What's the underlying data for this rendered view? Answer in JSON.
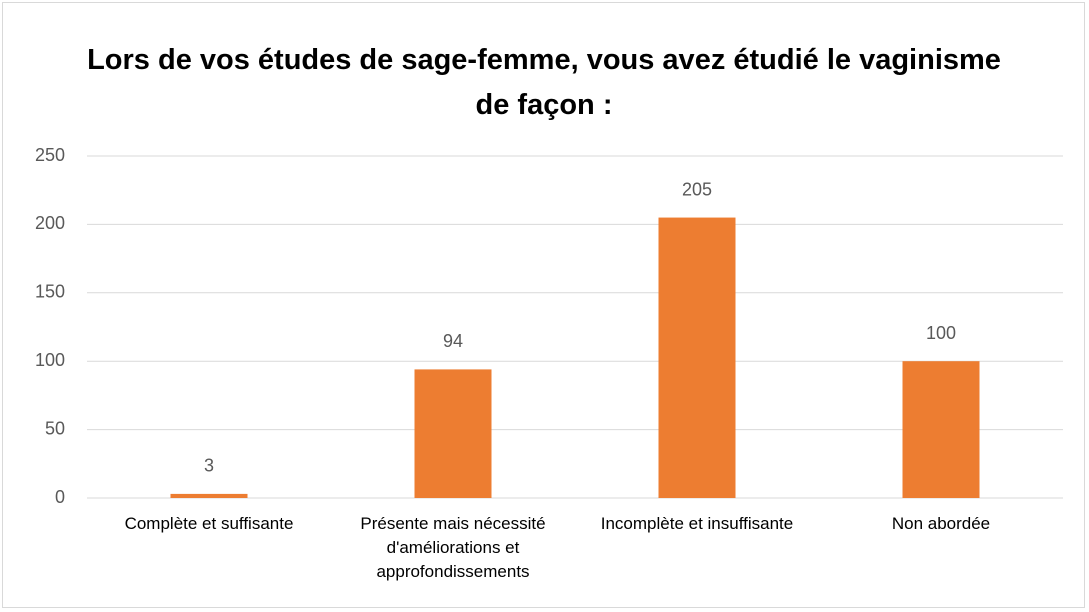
{
  "chart_data": {
    "type": "bar",
    "title": "Lors de vos études de sage-femme, vous avez étudié le vaginisme de façon :",
    "categories": [
      "Complète et suffisante",
      "Présente mais nécessité d'améliorations et approfondissements",
      "Incomplète et insuffisante",
      "Non abordée"
    ],
    "values": [
      3,
      94,
      205,
      100
    ],
    "color": "#ed7d31",
    "ylim": [
      0,
      250
    ],
    "yticks": [
      0,
      50,
      100,
      150,
      200,
      250
    ],
    "grid": true
  }
}
